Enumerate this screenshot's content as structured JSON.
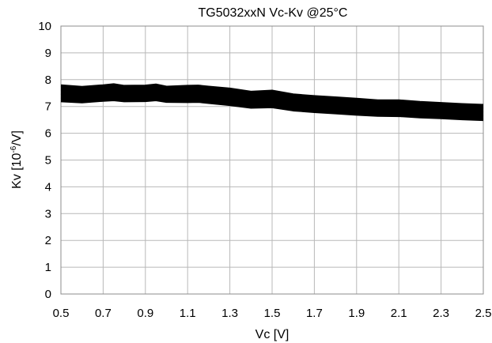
{
  "chart_data": {
    "type": "line",
    "title": "TG5032xxN  Vc-Kv  @25°C",
    "xlabel": "Vc [V]",
    "ylabel_main": "Kv [10",
    "ylabel_sup": "-6",
    "ylabel_tail": "/V]",
    "xlim": [
      0.5,
      2.5
    ],
    "ylim": [
      0,
      10
    ],
    "x_ticks": [
      "0.5",
      "0.7",
      "0.9",
      "1.1",
      "1.3",
      "1.5",
      "1.7",
      "1.9",
      "2.1",
      "2.3",
      "2.5"
    ],
    "y_ticks": [
      "0",
      "1",
      "2",
      "3",
      "4",
      "5",
      "6",
      "7",
      "8",
      "9",
      "10"
    ],
    "grid": true,
    "legend": "none",
    "band_color": "#000000",
    "x": [
      0.5,
      0.6,
      0.7,
      0.75,
      0.8,
      0.9,
      0.95,
      1.0,
      1.1,
      1.15,
      1.2,
      1.3,
      1.4,
      1.5,
      1.6,
      1.7,
      1.8,
      1.9,
      2.0,
      2.1,
      2.2,
      2.3,
      2.4,
      2.5
    ],
    "series": [
      {
        "values": [
          7.78,
          7.72,
          7.78,
          7.82,
          7.76,
          7.77,
          7.81,
          7.73,
          7.76,
          7.77,
          7.73,
          7.66,
          7.54,
          7.58,
          7.44,
          7.38,
          7.33,
          7.28,
          7.22,
          7.22,
          7.16,
          7.12,
          7.08,
          7.05
        ]
      },
      {
        "values": [
          7.62,
          7.58,
          7.64,
          7.67,
          7.62,
          7.63,
          7.66,
          7.6,
          7.61,
          7.62,
          7.58,
          7.5,
          7.38,
          7.42,
          7.28,
          7.22,
          7.17,
          7.12,
          7.07,
          7.07,
          7.02,
          6.98,
          6.94,
          6.91
        ]
      },
      {
        "values": [
          7.48,
          7.44,
          7.5,
          7.52,
          7.48,
          7.49,
          7.52,
          7.46,
          7.46,
          7.47,
          7.43,
          7.35,
          7.24,
          7.27,
          7.14,
          7.08,
          7.03,
          6.98,
          6.93,
          6.93,
          6.88,
          6.84,
          6.8,
          6.77
        ]
      },
      {
        "values": [
          7.34,
          7.3,
          7.36,
          7.38,
          7.34,
          7.35,
          7.38,
          7.32,
          7.31,
          7.32,
          7.28,
          7.2,
          7.1,
          7.12,
          7.0,
          6.94,
          6.89,
          6.84,
          6.79,
          6.79,
          6.74,
          6.7,
          6.66,
          6.63
        ]
      },
      {
        "values": [
          7.2,
          7.16,
          7.22,
          7.24,
          7.2,
          7.21,
          7.24,
          7.18,
          7.17,
          7.18,
          7.14,
          7.06,
          6.96,
          6.98,
          6.86,
          6.8,
          6.75,
          6.7,
          6.66,
          6.65,
          6.6,
          6.57,
          6.53,
          6.5
        ]
      }
    ]
  }
}
